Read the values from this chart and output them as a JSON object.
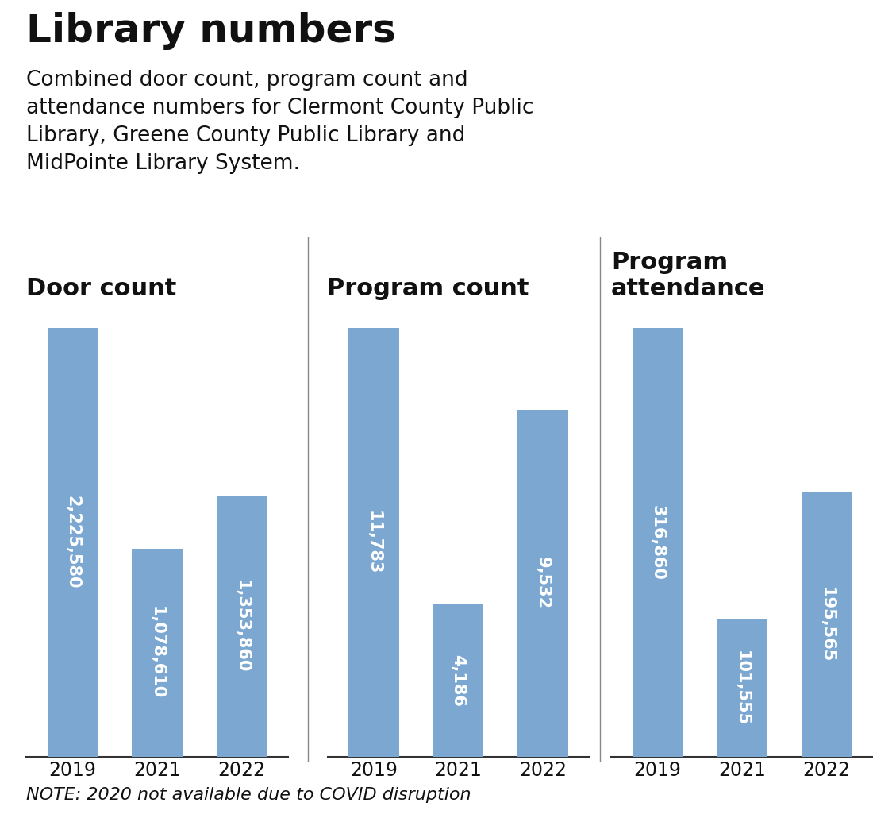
{
  "title": "Library numbers",
  "subtitle": "Combined door count, program count and\nattendance numbers for Clermont County Public\nLibrary, Greene County Public Library and\nMidPointe Library System.",
  "note": "NOTE: 2020 not available due to COVID disruption",
  "panels": [
    {
      "title": "Door count",
      "years": [
        "2019",
        "2021",
        "2022"
      ],
      "values": [
        2225580,
        1078610,
        1353860
      ],
      "labels": [
        "2,225,580",
        "1,078,610",
        "1,353,860"
      ]
    },
    {
      "title": "Program count",
      "years": [
        "2019",
        "2021",
        "2022"
      ],
      "values": [
        11783,
        4186,
        9532
      ],
      "labels": [
        "11,783",
        "4,186",
        "9,532"
      ]
    },
    {
      "title": "Program\nattendance",
      "years": [
        "2019",
        "2021",
        "2022"
      ],
      "values": [
        316860,
        101555,
        195565
      ],
      "labels": [
        "316,860",
        "101,555",
        "195,565"
      ]
    }
  ],
  "bar_color": "#7ba7d0",
  "bar_width": 0.6,
  "text_color_inside": "#ffffff",
  "label_fontsize": 15,
  "panel_title_fontsize": 22,
  "year_label_fontsize": 17,
  "title_fontsize": 36,
  "subtitle_fontsize": 19,
  "note_fontsize": 16,
  "background_color": "#ffffff",
  "fig_width": 11.0,
  "fig_height": 10.3
}
